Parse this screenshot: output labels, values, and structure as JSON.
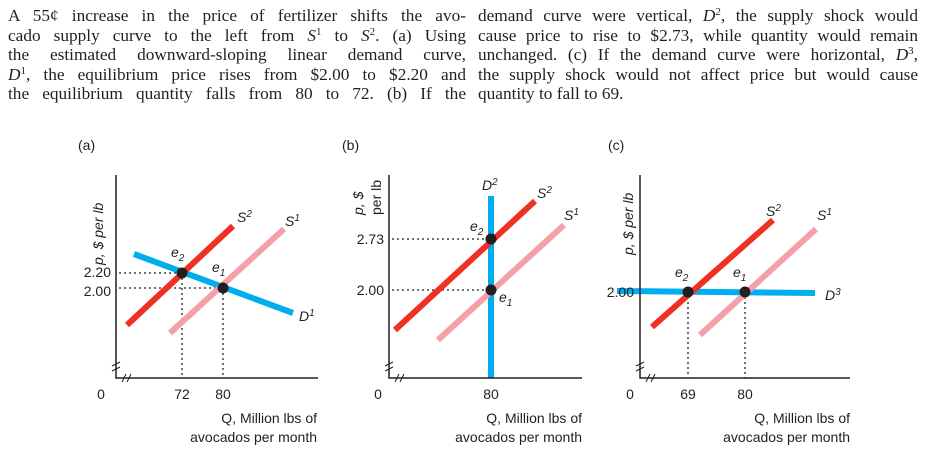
{
  "caption": {
    "left_lines": [
      [
        {
          "t": "A 55¢ increase in the price of fertilizer shifts the avo-"
        }
      ],
      [
        {
          "t": "cado supply curve to the left from "
        },
        {
          "t": "S",
          "i": 1
        },
        {
          "t": "1",
          "s": 1
        },
        {
          "t": " to "
        },
        {
          "t": "S",
          "i": 1
        },
        {
          "t": "2",
          "s": 1
        },
        {
          "t": ". (a) Using"
        }
      ],
      [
        {
          "t": "the estimated downward-sloping linear demand curve,"
        }
      ],
      [
        {
          "t": "D",
          "i": 1
        },
        {
          "t": "1",
          "s": 1
        },
        {
          "t": ", the equilibrium price rises from $2.00 to $2.20 and"
        }
      ],
      [
        {
          "t": "the equilibrium quantity falls from 80 to 72. (b) If the"
        }
      ]
    ],
    "right_lines": [
      [
        {
          "t": "demand curve were vertical, "
        },
        {
          "t": "D",
          "i": 1
        },
        {
          "t": "2",
          "s": 1
        },
        {
          "t": ", the supply shock would"
        }
      ],
      [
        {
          "t": "cause price to rise to $2.73, while quantity would remain"
        }
      ],
      [
        {
          "t": "unchanged. (c) If the demand curve were horizontal, "
        },
        {
          "t": "D",
          "i": 1
        },
        {
          "t": "3",
          "s": 1
        },
        {
          "t": ","
        }
      ],
      [
        {
          "t": "the supply shock would not affect price but would cause"
        }
      ],
      [
        {
          "t": "quantity to fall to 69."
        }
      ]
    ]
  },
  "colors": {
    "demand": "#00aeef",
    "supply_new": "#ee3124",
    "supply_old": "#f4a0a8",
    "axis": "#231f20"
  },
  "panels": [
    {
      "label": "(a)",
      "y_axis_label": "p, $ per lb",
      "x_axis_label_1": "Q, Million lbs of",
      "x_axis_label_2": "avocados per month",
      "origin": "0",
      "price_ticks": [
        "2.20",
        "2.00"
      ],
      "quantity_ticks": [
        "72",
        "80"
      ],
      "demand_label": "D",
      "demand_sup": "1",
      "s1_label": "S",
      "s1_sup": "1",
      "s2_label": "S",
      "s2_sup": "2",
      "e1": "e",
      "e1_sub": "1",
      "e2": "e",
      "e2_sub": "2"
    },
    {
      "label": "(b)",
      "y_axis_label_1": "p, $",
      "y_axis_label_2": "per lb",
      "x_axis_label_1": "Q, Million lbs of",
      "x_axis_label_2": "avocados per month",
      "origin": "0",
      "price_ticks": [
        "2.73",
        "2.00"
      ],
      "quantity_ticks": [
        "80"
      ],
      "demand_label": "D",
      "demand_sup": "2",
      "s1_label": "S",
      "s1_sup": "1",
      "s2_label": "S",
      "s2_sup": "2",
      "e1": "e",
      "e1_sub": "1",
      "e2": "e",
      "e2_sub": "2"
    },
    {
      "label": "(c)",
      "y_axis_label": "p, $ per lb",
      "x_axis_label_1": "Q, Million lbs of",
      "x_axis_label_2": "avocados per month",
      "origin": "0",
      "price_ticks": [
        "2.00"
      ],
      "quantity_ticks": [
        "69",
        "80"
      ],
      "demand_label": "D",
      "demand_sup": "3",
      "s1_label": "S",
      "s1_sup": "1",
      "s2_label": "S",
      "s2_sup": "2",
      "e1": "e",
      "e1_sub": "1",
      "e2": "e",
      "e2_sub": "2"
    }
  ]
}
